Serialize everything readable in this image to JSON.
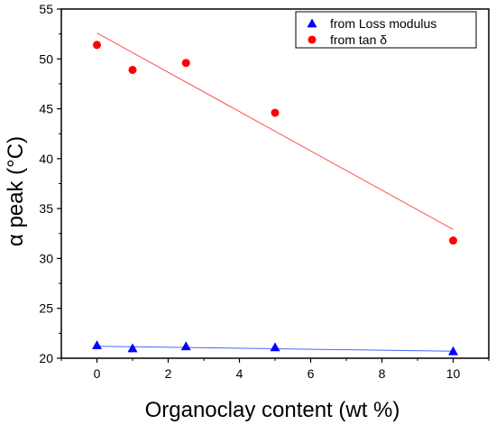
{
  "chart_data": {
    "type": "scatter",
    "xlabel": "Organoclay content (wt %)",
    "ylabel": "α peak (°C)",
    "xlim": [
      -1,
      11
    ],
    "ylim": [
      20,
      55
    ],
    "xticks": [
      0,
      2,
      4,
      6,
      8,
      10
    ],
    "yticks": [
      20,
      25,
      30,
      35,
      40,
      45,
      50,
      55
    ],
    "grid": false,
    "legend_position": "top-right",
    "series": [
      {
        "name": "from Loss modulus",
        "marker": "triangle",
        "color": "#0000ff",
        "x": [
          0,
          1,
          2.5,
          5,
          10
        ],
        "y": [
          21.3,
          21.0,
          21.2,
          21.1,
          20.7
        ],
        "fit": {
          "x": [
            0,
            10
          ],
          "y": [
            21.2,
            20.7
          ],
          "color": "#4a64ff"
        }
      },
      {
        "name": "from tan δ",
        "marker": "circle",
        "color": "#ff0000",
        "x": [
          0,
          1,
          2.5,
          5,
          10
        ],
        "y": [
          51.4,
          48.9,
          49.6,
          44.6,
          31.8
        ],
        "fit": {
          "x": [
            0,
            10
          ],
          "y": [
            52.6,
            32.9
          ],
          "color": "#ff5050"
        }
      }
    ]
  }
}
